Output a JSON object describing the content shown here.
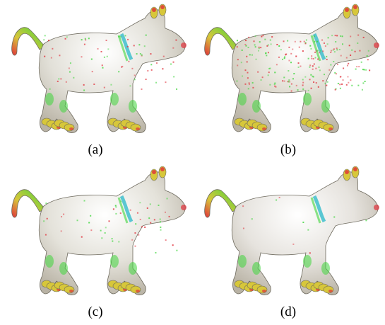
{
  "figure": {
    "panels": [
      {
        "id": "a",
        "caption": "(a)",
        "noise_level": 0.35,
        "fill": "#e2e0d8"
      },
      {
        "id": "b",
        "caption": "(b)",
        "noise_level": 1.0,
        "fill": "#dcd8cc"
      },
      {
        "id": "c",
        "caption": "(c)",
        "noise_level": 0.25,
        "fill": "#e4e2da"
      },
      {
        "id": "d",
        "caption": "(d)",
        "noise_level": 0.05,
        "fill": "#e6e3de"
      }
    ],
    "colors": {
      "outline": "#6e6a5e",
      "green": "#3fd63c",
      "red": "#e0303a",
      "yellow": "#d7c73a",
      "cyan": "#27b8c8",
      "highlight": "#ffffff"
    }
  }
}
